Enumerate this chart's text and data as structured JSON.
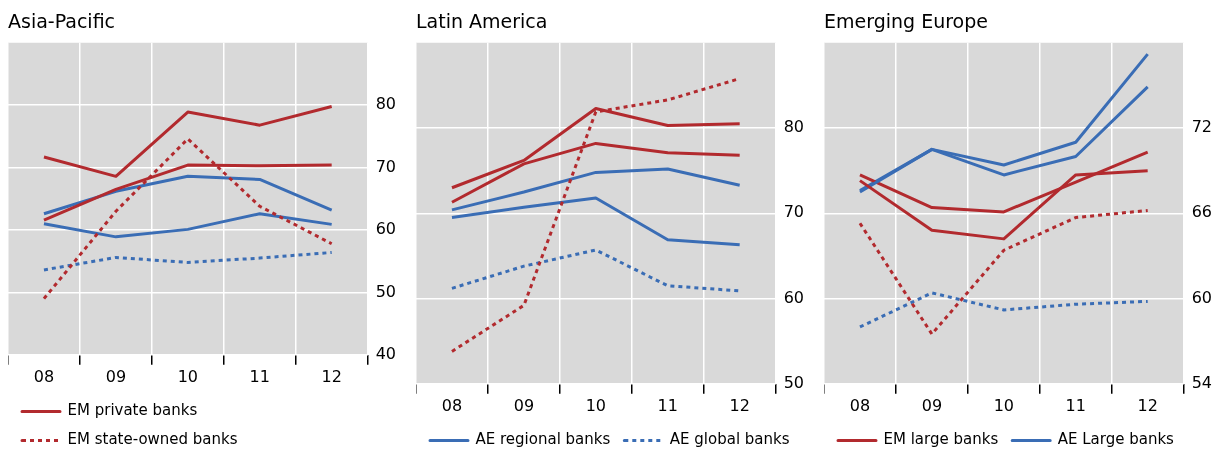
{
  "chart_data": [
    {
      "type": "line",
      "title": "Asia-Pacific",
      "categories": [
        "08",
        "09",
        "10",
        "11",
        "12"
      ],
      "ylim": [
        40,
        90
      ],
      "yticks": [
        40,
        50,
        60,
        70,
        80
      ],
      "grid": true,
      "legend": "bottom",
      "marker": "none",
      "series": [
        {
          "name": "EM private banks",
          "color": "#b22a2e",
          "line_style": "solid",
          "values": [
            61.6,
            66.5,
            70.4,
            70.3,
            70.4
          ]
        },
        {
          "name": "EM state-owned banks",
          "color": "#b22a2e",
          "line_style": "dotted",
          "values": [
            49,
            63,
            74.6,
            63.8,
            57.8
          ]
        },
        {
          "color": "#3a6db5",
          "line_style": "solid",
          "values": [
            62.6,
            66.2,
            68.6,
            68.1,
            63.2
          ]
        },
        {
          "color": "#3a6db5",
          "line_style": "dotted",
          "values": [
            53.6,
            55.6,
            54.8,
            55.5,
            56.4
          ]
        },
        {
          "color": "#b22a2e",
          "line_style": "solid",
          "values": [
            71.7,
            68.6,
            78.9,
            76.8,
            79.8
          ]
        },
        {
          "color": "#3a6db5",
          "line_style": "solid",
          "values": [
            61,
            58.9,
            60.1,
            62.6,
            60.9
          ]
        }
      ]
    },
    {
      "type": "line",
      "title": "Latin America",
      "categories": [
        "08",
        "09",
        "10",
        "11",
        "12"
      ],
      "ylim": [
        50,
        90
      ],
      "yticks": [
        50,
        60,
        70,
        80
      ],
      "grid": true,
      "legend": "bottom",
      "marker": "none",
      "series": [
        {
          "color": "#b22a2e",
          "line_style": "solid",
          "values": [
            71.3,
            75.8,
            78.2,
            77.1,
            76.8
          ]
        },
        {
          "color": "#b22a2e",
          "line_style": "dotted",
          "values": [
            53.8,
            59.2,
            81.9,
            83.3,
            85.8
          ]
        },
        {
          "name": "AE regional banks",
          "color": "#3a6db5",
          "line_style": "solid",
          "values": [
            69.5,
            70.7,
            71.8,
            66.9,
            66.3
          ]
        },
        {
          "name": "AE global banks",
          "color": "#3a6db5",
          "line_style": "dotted",
          "values": [
            61.2,
            63.8,
            65.7,
            61.5,
            60.9
          ]
        },
        {
          "color": "#b22a2e",
          "line_style": "solid",
          "values": [
            73,
            76.2,
            82.3,
            80.3,
            80.5
          ]
        },
        {
          "color": "#3a6db5",
          "line_style": "solid",
          "values": [
            70.4,
            72.5,
            74.8,
            75.2,
            73.3
          ]
        }
      ]
    },
    {
      "type": "line",
      "title": "Emerging Europe",
      "categories": [
        "08",
        "09",
        "10",
        "11",
        "12"
      ],
      "ylim": [
        54,
        78
      ],
      "yticks": [
        54,
        60,
        66,
        72
      ],
      "grid": true,
      "legend": "bottom",
      "marker": "none",
      "series": [
        {
          "color": "#b22a2e",
          "line_style": "solid",
          "values": [
            68.3,
            64.8,
            64.2,
            68.7,
            69
          ]
        },
        {
          "color": "#b22a2e",
          "line_style": "dotted",
          "values": [
            65.3,
            57.5,
            63.4,
            65.7,
            66.2
          ]
        },
        {
          "color": "#3a6db5",
          "line_style": "solid",
          "values": [
            67.5,
            70.5,
            68.7,
            70,
            74.9
          ]
        },
        {
          "color": "#3a6db5",
          "line_style": "dotted",
          "values": [
            58,
            60.4,
            59.2,
            59.6,
            59.8
          ]
        },
        {
          "name": "EM large banks",
          "color": "#b22a2e",
          "line_style": "solid",
          "values": [
            68.7,
            66.4,
            66.1,
            68.2,
            70.3
          ]
        },
        {
          "name": "AE Large banks",
          "color": "#3a6db5",
          "line_style": "solid",
          "values": [
            67.6,
            70.5,
            69.4,
            71,
            77.2
          ]
        }
      ]
    }
  ]
}
